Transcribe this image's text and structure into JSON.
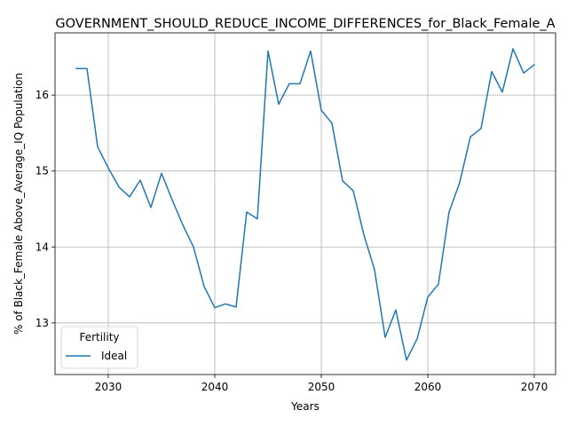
{
  "chart_data": {
    "type": "line",
    "title": "GOVERNMENT_SHOULD_REDUCE_INCOME_DIFFERENCES_for_Black_Female_A",
    "xlabel": "Years",
    "ylabel": "% of Black_Female Above_Average_IQ Population",
    "xlim": [
      2025,
      2072
    ],
    "ylim": [
      12.32,
      16.82
    ],
    "xticks": [
      2030,
      2040,
      2050,
      2060,
      2070
    ],
    "yticks": [
      13,
      14,
      15,
      16
    ],
    "grid": true,
    "legend": {
      "title": "Fertility",
      "placement": "lower-left"
    },
    "series": [
      {
        "name": "Ideal",
        "color": "#1f77b4",
        "x": [
          2027,
          2028,
          2029,
          2030,
          2031,
          2032,
          2033,
          2034,
          2035,
          2036,
          2037,
          2038,
          2039,
          2040,
          2041,
          2042,
          2043,
          2044,
          2045,
          2046,
          2047,
          2048,
          2049,
          2050,
          2051,
          2052,
          2053,
          2054,
          2055,
          2056,
          2057,
          2058,
          2059,
          2060,
          2061,
          2062,
          2063,
          2064,
          2065,
          2066,
          2067,
          2068,
          2069,
          2070
        ],
        "y": [
          16.35,
          16.35,
          15.32,
          15.04,
          14.79,
          14.66,
          14.88,
          14.52,
          14.97,
          14.62,
          14.29,
          14.0,
          13.48,
          13.2,
          13.25,
          13.21,
          14.46,
          14.37,
          16.58,
          15.88,
          16.15,
          16.15,
          16.58,
          15.8,
          15.63,
          14.87,
          14.74,
          14.16,
          13.7,
          12.81,
          13.17,
          12.51,
          12.79,
          13.34,
          13.51,
          14.46,
          14.85,
          15.45,
          15.56,
          16.31,
          16.04,
          16.61,
          16.29,
          16.4
        ]
      }
    ]
  }
}
